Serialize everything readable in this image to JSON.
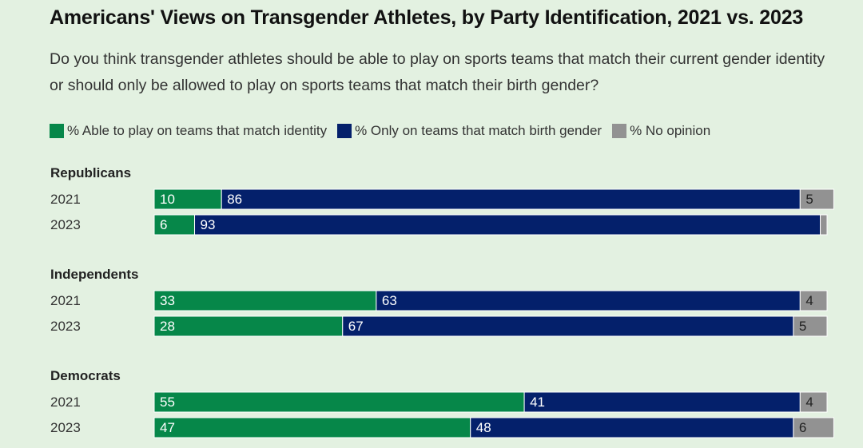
{
  "chart_data": {
    "type": "bar",
    "orientation": "horizontal",
    "stacked": true,
    "title": "Americans' Views on Transgender Athletes, by Party Identification, 2021 vs. 2023",
    "subtitle": "Do you think transgender athletes should be able to play on sports teams that match their current gender identity or should only be allowed to play on sports teams that match their birth gender?",
    "legend_position": "top-left",
    "series": [
      {
        "name": "% Able to play on teams that match identity",
        "color": "#068749"
      },
      {
        "name": "% Only on teams that match birth gender",
        "color": "#04206b"
      },
      {
        "name": "% No opinion",
        "color": "#929292"
      }
    ],
    "groups": [
      {
        "label": "Republicans",
        "rows": [
          {
            "year": "2021",
            "values": [
              10,
              86,
              5
            ],
            "labels": [
              "10",
              "86",
              "5"
            ]
          },
          {
            "year": "2023",
            "values": [
              6,
              93,
              1
            ],
            "labels": [
              "6",
              "93",
              ""
            ]
          }
        ]
      },
      {
        "label": "Independents",
        "rows": [
          {
            "year": "2021",
            "values": [
              33,
              63,
              4
            ],
            "labels": [
              "33",
              "63",
              "4"
            ]
          },
          {
            "year": "2023",
            "values": [
              28,
              67,
              5
            ],
            "labels": [
              "28",
              "67",
              "5"
            ]
          }
        ]
      },
      {
        "label": "Democrats",
        "rows": [
          {
            "year": "2021",
            "values": [
              55,
              41,
              4
            ],
            "labels": [
              "55",
              "41",
              "4"
            ]
          },
          {
            "year": "2023",
            "values": [
              47,
              48,
              6
            ],
            "labels": [
              "47",
              "48",
              "6"
            ]
          }
        ]
      }
    ]
  }
}
